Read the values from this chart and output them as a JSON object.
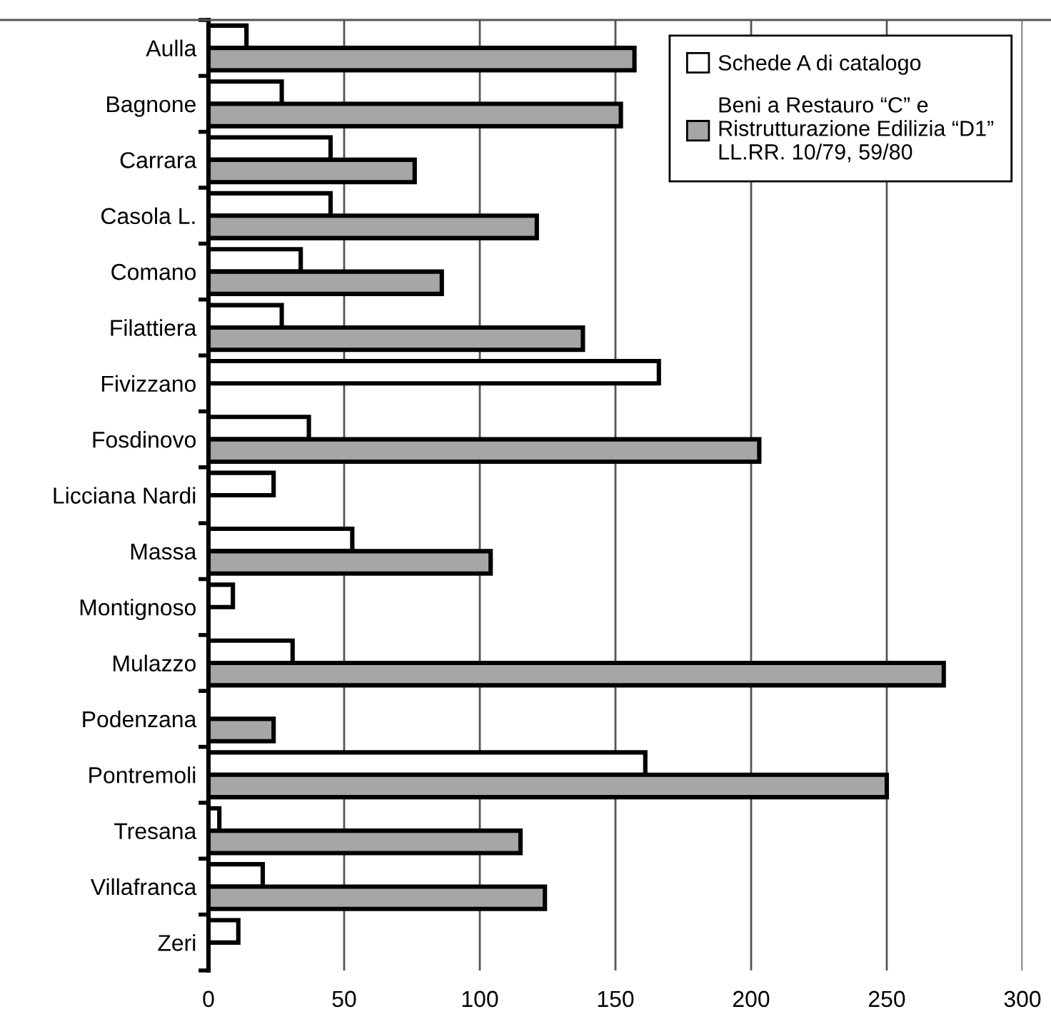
{
  "chart_data": {
    "type": "bar",
    "orientation": "horizontal",
    "categories": [
      "Aulla",
      "Bagnone",
      "Carrara",
      "Casola L.",
      "Comano",
      "Filattiera",
      "Fivizzano",
      "Fosdinovo",
      "Licciana Nardi",
      "Massa",
      "Montignoso",
      "Mulazzo",
      "Podenzana",
      "Pontremoli",
      "Tresana",
      "Villafranca",
      "Zeri"
    ],
    "series": [
      {
        "name": "Schede A di catalogo",
        "color": "#ffffff",
        "values": [
          14,
          27,
          45,
          45,
          34,
          27,
          166,
          37,
          24,
          53,
          9,
          31,
          null,
          161,
          4,
          20,
          11
        ]
      },
      {
        "name": "Beni a Restauro “C” e\nRistrutturazione Edilizia “D1”\nLL.RR. 10/79, 59/80",
        "color": "#a6a6a6",
        "values": [
          157,
          152,
          76,
          121,
          86,
          138,
          null,
          203,
          null,
          104,
          null,
          271,
          24,
          250,
          115,
          124,
          null
        ]
      }
    ],
    "xlim": [
      0,
      300
    ],
    "xticks": [
      0,
      50,
      100,
      150,
      200,
      250,
      300
    ],
    "grid": "x",
    "legend": "top right"
  }
}
